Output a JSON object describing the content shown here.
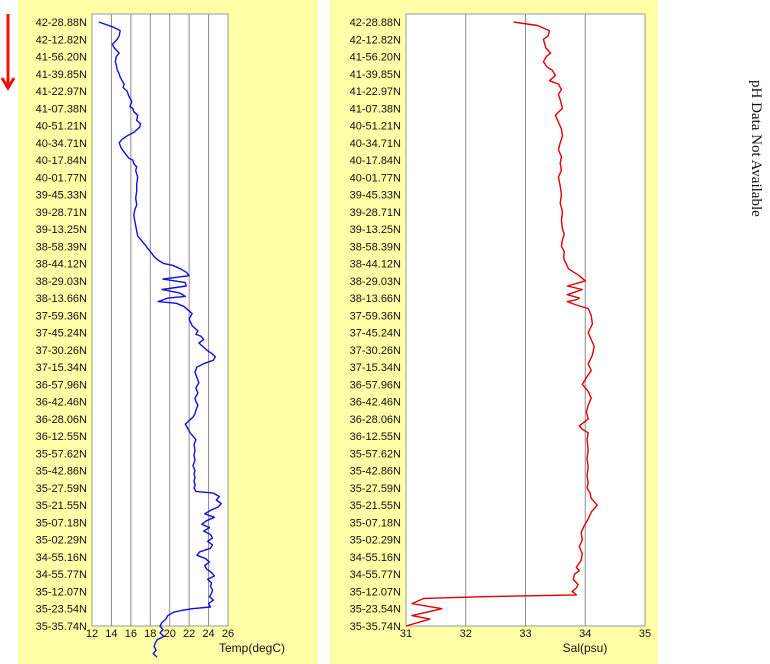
{
  "side_note": "pH Data Not Available",
  "panel_bg": "#ffffa8",
  "arrow_color": "#e8140c",
  "chart_data": [
    {
      "type": "line",
      "xlabel": "Temp(degC)",
      "xlim": [
        12,
        26
      ],
      "xticks": [
        "12",
        "14",
        "16",
        "18",
        "20",
        "22",
        "24",
        "26"
      ],
      "grid_x": [
        14,
        16,
        18,
        20,
        22,
        24
      ],
      "y_categories": [
        "42-28.88N",
        "42-12.82N",
        "41-56.20N",
        "41-39.85N",
        "41-22.97N",
        "41-07.38N",
        "40-51.21N",
        "40-34.71N",
        "40-17.84N",
        "40-01.77N",
        "39-45.33N",
        "39-28.71N",
        "39-13.25N",
        "38-58.39N",
        "38-44.12N",
        "38-29.03N",
        "38-13.66N",
        "37-59.36N",
        "37-45.24N",
        "37-30.26N",
        "37-15.34N",
        "36-57.96N",
        "36-42.46N",
        "36-28.06N",
        "36-12.55N",
        "35-57.62N",
        "35-42.86N",
        "35-27.59N",
        "35-21.55N",
        "35-07.18N",
        "35-02.29N",
        "34-55.16N",
        "34-55.77N",
        "35-12.07N",
        "35-23.54N",
        "35-35.74N"
      ],
      "series": [
        {
          "color": "#1010e0",
          "x": [
            12.7,
            14.2,
            14.9,
            14.8,
            14.6,
            14.1,
            14.3,
            14.8,
            14.5,
            14.4,
            14.5,
            14.6,
            14.8,
            14.9,
            15.1,
            15.3,
            15.2,
            15.6,
            15.8,
            16.1,
            15.9,
            16.2,
            16.3,
            16.7,
            16.6,
            17.0,
            16.9,
            16.3,
            15.6,
            15.1,
            14.8,
            15.0,
            15.4,
            15.8,
            16.2,
            16.3,
            16.6,
            16.5,
            16.7,
            16.6,
            16.6,
            16.5,
            16.6,
            16.4,
            16.3,
            16.4,
            16.5,
            16.6,
            16.7,
            17.0,
            17.3,
            17.6,
            17.7,
            18.0,
            18.4,
            18.8,
            19.4,
            20.3,
            21.1,
            21.7,
            22.0,
            19.3,
            21.6,
            21.7,
            19.2,
            21.0,
            21.6,
            19.8,
            18.8,
            20.7,
            21.5,
            21.9,
            22.3,
            22.0,
            22.3,
            22.9,
            22.7,
            23.2,
            23.5,
            23.0,
            23.4,
            23.8,
            24.3,
            24.7,
            24.5,
            23.5,
            22.8,
            22.6,
            22.8,
            23.0,
            22.7,
            22.9,
            22.6,
            22.7,
            22.9,
            22.7,
            22.6,
            22.4,
            22.0,
            21.6,
            21.8,
            22.1,
            22.4,
            22.7,
            22.5,
            22.6,
            22.5,
            22.6,
            22.4,
            22.6,
            22.5,
            22.6,
            22.5,
            22.6,
            22.6,
            22.5,
            22.6,
            22.7,
            24.5,
            25.1,
            24.8,
            25.3,
            25.0,
            24.2,
            23.6,
            24.6,
            23.8,
            23.3,
            24.1,
            23.5,
            24.2,
            24.4,
            23.9,
            24.4,
            24.2,
            23.1,
            22.8,
            23.7,
            24.1,
            23.6,
            23.8,
            24.3,
            24.6,
            23.9,
            24.3,
            24.2,
            24.4,
            24.3,
            24.1,
            24.5,
            24.0,
            24.2,
            22.3,
            21.2,
            20.4,
            19.8,
            19.6,
            19.2,
            19.0,
            19.3,
            19.0,
            19.4,
            18.7,
            18.5,
            18.4,
            18.6,
            18.3,
            18.7
          ],
          "y": [
            0.0,
            0.3,
            0.5,
            0.8,
            1.0,
            1.3,
            1.5,
            1.8,
            2.0,
            2.3,
            2.5,
            2.8,
            3.0,
            3.2,
            3.4,
            3.6,
            3.8,
            4.0,
            4.3,
            4.6,
            4.9,
            5.0,
            5.2,
            5.4,
            5.7,
            5.9,
            6.1,
            6.4,
            6.6,
            6.8,
            7.0,
            7.3,
            7.6,
            7.9,
            8.0,
            8.2,
            8.4,
            8.6,
            9.0,
            9.4,
            9.8,
            10.2,
            10.6,
            10.9,
            11.2,
            11.5,
            11.8,
            12.1,
            12.4,
            12.6,
            12.8,
            13.0,
            13.1,
            13.3,
            13.6,
            13.8,
            14.0,
            14.1,
            14.3,
            14.5,
            14.7,
            14.9,
            15.1,
            15.3,
            15.5,
            15.7,
            15.9,
            16.0,
            16.2,
            16.3,
            16.5,
            16.7,
            16.9,
            17.2,
            17.6,
            17.9,
            18.1,
            18.2,
            18.4,
            18.6,
            18.8,
            19.0,
            19.2,
            19.4,
            19.6,
            19.8,
            20.0,
            20.3,
            20.6,
            20.9,
            21.2,
            21.5,
            21.8,
            22.0,
            22.2,
            22.5,
            22.7,
            22.9,
            23.1,
            23.3,
            23.5,
            23.8,
            24.0,
            24.2,
            24.5,
            24.8,
            25.1,
            25.4,
            25.7,
            26.0,
            26.2,
            26.4,
            26.6,
            26.8,
            26.9,
            27.0,
            27.1,
            27.2,
            27.3,
            27.5,
            27.7,
            27.9,
            28.1,
            28.3,
            28.5,
            28.7,
            28.9,
            29.1,
            29.3,
            29.5,
            29.7,
            29.9,
            30.1,
            30.3,
            30.5,
            30.7,
            30.9,
            31.1,
            31.3,
            31.5,
            31.7,
            31.9,
            32.1,
            32.3,
            32.5,
            32.7,
            32.9,
            33.1,
            33.3,
            33.5,
            33.7,
            33.9,
            34.0,
            34.1,
            34.2,
            34.4,
            34.6,
            34.8,
            35.0,
            35.2,
            35.4,
            35.6,
            35.8,
            36.0,
            36.2,
            36.4,
            36.6,
            36.8
          ]
        }
      ]
    },
    {
      "type": "line",
      "xlabel": "Sal(psu)",
      "xlim": [
        31,
        35
      ],
      "xticks": [
        "31",
        "32",
        "33",
        "34",
        "35"
      ],
      "grid_x": [
        32,
        33,
        34
      ],
      "y_categories": [
        "42-28.88N",
        "42-12.82N",
        "41-56.20N",
        "41-39.85N",
        "41-22.97N",
        "41-07.38N",
        "40-51.21N",
        "40-34.71N",
        "40-17.84N",
        "40-01.77N",
        "39-45.33N",
        "39-28.71N",
        "39-13.25N",
        "38-58.39N",
        "38-44.12N",
        "38-29.03N",
        "38-13.66N",
        "37-59.36N",
        "37-45.24N",
        "37-30.26N",
        "37-15.34N",
        "36-57.96N",
        "36-42.46N",
        "36-28.06N",
        "36-12.55N",
        "35-57.62N",
        "35-42.86N",
        "35-27.59N",
        "35-21.55N",
        "35-07.18N",
        "35-02.29N",
        "34-55.16N",
        "34-55.77N",
        "35-12.07N",
        "35-23.54N",
        "35-35.74N"
      ],
      "series": [
        {
          "color": "#e00000",
          "x": [
            32.8,
            33.2,
            33.4,
            33.38,
            33.3,
            33.34,
            33.42,
            33.35,
            33.3,
            33.36,
            33.45,
            33.5,
            33.4,
            33.55,
            33.6,
            33.55,
            33.58,
            33.62,
            33.5,
            33.55,
            33.6,
            33.62,
            33.58,
            33.55,
            33.6,
            33.58,
            33.6,
            33.55,
            33.58,
            33.6,
            33.58,
            33.62,
            33.6,
            33.62,
            33.65,
            33.62,
            33.6,
            33.65,
            33.64,
            33.65,
            33.68,
            33.72,
            33.9,
            34.0,
            33.7,
            33.95,
            33.7,
            33.9,
            33.85,
            33.7,
            33.85,
            34.05,
            34.1,
            34.12,
            34.05,
            34.1,
            34.15,
            34.12,
            34.05,
            34.1,
            34.02,
            33.95,
            34.05,
            34.1,
            34.05,
            34.02,
            34.05,
            33.9,
            33.95,
            34.05,
            34.03,
            34.05,
            34.03,
            34.05,
            34.03,
            34.05,
            34.03,
            34.08,
            34.1,
            34.2,
            34.1,
            34.05,
            33.98,
            33.93,
            33.95,
            33.9,
            33.95,
            33.93,
            33.85,
            33.9,
            33.82,
            33.8,
            33.88,
            33.85,
            33.78,
            33.82,
            33.85,
            32.3,
            31.3,
            31.1,
            31.6,
            31.1,
            31.4,
            31.0
          ],
          "y": [
            0.0,
            0.2,
            0.5,
            0.8,
            1.0,
            1.5,
            1.8,
            2.0,
            2.3,
            2.6,
            2.8,
            3.1,
            3.4,
            3.6,
            3.9,
            4.2,
            4.5,
            5.0,
            5.4,
            5.8,
            6.2,
            6.6,
            7.0,
            7.4,
            7.8,
            8.2,
            8.6,
            9.0,
            9.5,
            10.0,
            10.5,
            11.0,
            11.5,
            12.0,
            12.3,
            12.6,
            13.0,
            13.3,
            13.6,
            13.8,
            14.0,
            14.3,
            14.7,
            15.0,
            15.3,
            15.5,
            15.8,
            16.0,
            16.1,
            16.2,
            16.4,
            16.6,
            17.0,
            17.5,
            18.0,
            18.4,
            18.8,
            19.3,
            19.8,
            20.2,
            20.6,
            21.0,
            21.4,
            21.8,
            22.2,
            22.6,
            23.0,
            23.4,
            23.6,
            23.8,
            24.2,
            24.8,
            25.3,
            25.8,
            26.3,
            26.7,
            27.0,
            27.3,
            27.6,
            28.0,
            28.4,
            28.8,
            29.2,
            29.6,
            30.0,
            30.4,
            30.8,
            31.2,
            31.6,
            31.8,
            32.0,
            32.3,
            32.6,
            32.8,
            33.0,
            33.1,
            33.2,
            33.3,
            33.4,
            33.7,
            34.0,
            34.4,
            34.6,
            35.0
          ]
        }
      ]
    }
  ]
}
